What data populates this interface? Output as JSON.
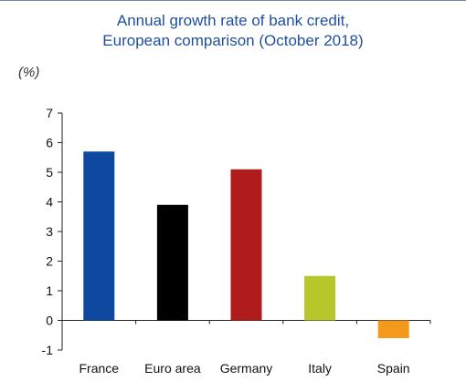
{
  "chart_data": {
    "type": "bar",
    "title_lines": [
      "Annual growth rate of bank credit,",
      "European comparison (October 2018)"
    ],
    "unit": "(%)",
    "categories": [
      "France",
      "Euro area",
      "Germany",
      "Italy",
      "Spain"
    ],
    "values": [
      5.7,
      3.9,
      5.1,
      1.5,
      -0.6
    ],
    "colors": [
      "#0e48a0",
      "#000000",
      "#b01c1c",
      "#b5c72a",
      "#f39a1d"
    ],
    "ylim": [
      -1,
      7
    ],
    "yticks": [
      "-1",
      "0",
      "1",
      "2",
      "3",
      "4",
      "5",
      "6",
      "7"
    ],
    "grid": false,
    "legend": "none"
  }
}
